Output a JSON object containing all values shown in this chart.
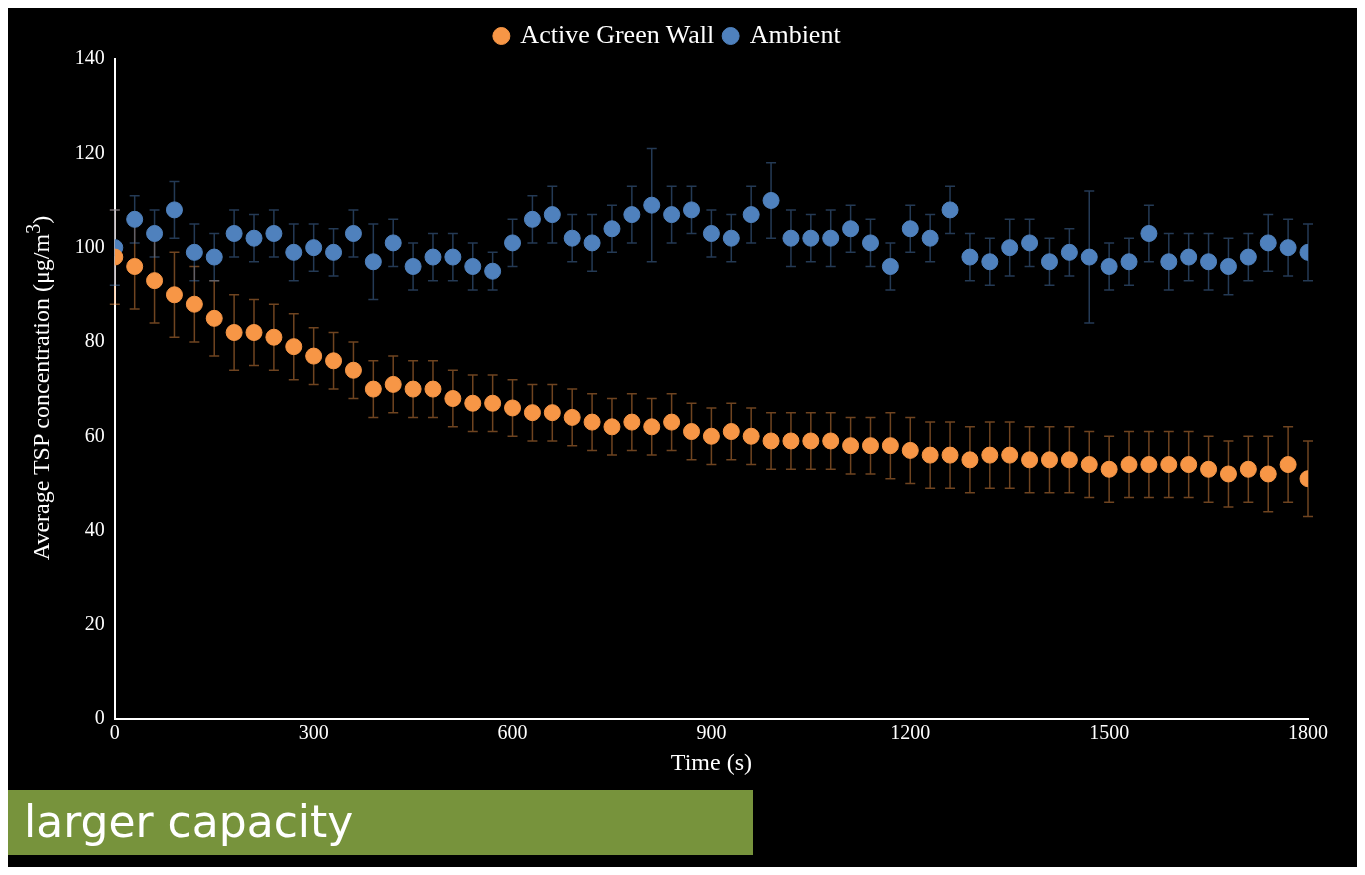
{
  "chart_data": {
    "type": "scatter",
    "xlabel": "Time (s)",
    "ylabel": "Average TSP concentration (μg/m$^{3}$)",
    "xlim": [
      0,
      1800
    ],
    "xticks": [
      0,
      300,
      600,
      900,
      1200,
      1500,
      1800
    ],
    "ylim": [
      0,
      140
    ],
    "yticks": [
      0,
      20,
      40,
      60,
      80,
      100,
      120,
      140
    ],
    "grid": false,
    "legend": "top",
    "marker": "circle",
    "x": [
      0,
      30,
      60,
      90,
      120,
      150,
      180,
      210,
      240,
      270,
      300,
      330,
      360,
      390,
      420,
      450,
      480,
      510,
      540,
      570,
      600,
      630,
      660,
      690,
      720,
      750,
      780,
      810,
      840,
      870,
      900,
      930,
      960,
      990,
      1020,
      1050,
      1080,
      1110,
      1140,
      1170,
      1200,
      1230,
      1260,
      1290,
      1320,
      1350,
      1380,
      1410,
      1440,
      1470,
      1500,
      1530,
      1560,
      1590,
      1620,
      1650,
      1680,
      1710,
      1740,
      1770,
      1800
    ],
    "series": [
      {
        "name": "Active Green Wall",
        "color": "#f79646",
        "values": [
          98,
          96,
          93,
          90,
          88,
          85,
          82,
          82,
          81,
          79,
          77,
          76,
          74,
          70,
          71,
          70,
          70,
          68,
          67,
          67,
          66,
          65,
          65,
          64,
          63,
          62,
          63,
          62,
          63,
          61,
          60,
          61,
          60,
          59,
          59,
          59,
          59,
          58,
          58,
          58,
          57,
          56,
          56,
          55,
          56,
          56,
          55,
          55,
          55,
          54,
          53,
          54,
          54,
          54,
          54,
          53,
          52,
          53,
          52,
          54,
          51
        ],
        "errors": [
          10,
          9,
          9,
          9,
          8,
          8,
          8,
          7,
          7,
          7,
          6,
          6,
          6,
          6,
          6,
          6,
          6,
          6,
          6,
          6,
          6,
          6,
          6,
          6,
          6,
          6,
          6,
          6,
          6,
          6,
          6,
          6,
          6,
          6,
          6,
          6,
          6,
          6,
          6,
          7,
          7,
          7,
          7,
          7,
          7,
          7,
          7,
          7,
          7,
          7,
          7,
          7,
          7,
          7,
          7,
          7,
          7,
          7,
          8,
          8,
          8
        ]
      },
      {
        "name": "Ambient",
        "color": "#4f81bd",
        "values": [
          100,
          106,
          103,
          108,
          99,
          98,
          103,
          102,
          103,
          99,
          100,
          99,
          103,
          97,
          101,
          96,
          98,
          98,
          96,
          95,
          101,
          106,
          107,
          102,
          101,
          104,
          107,
          109,
          107,
          108,
          103,
          102,
          107,
          110,
          102,
          102,
          102,
          104,
          101,
          96,
          104,
          102,
          108,
          98,
          97,
          100,
          101,
          97,
          99,
          98,
          96,
          97,
          103,
          97,
          98,
          97,
          96,
          98,
          101,
          100,
          99
        ],
        "errors": [
          8,
          5,
          5,
          6,
          6,
          5,
          5,
          5,
          5,
          6,
          5,
          5,
          5,
          8,
          5,
          5,
          5,
          5,
          5,
          4,
          5,
          5,
          6,
          5,
          6,
          5,
          6,
          12,
          6,
          5,
          5,
          5,
          6,
          8,
          6,
          5,
          6,
          5,
          5,
          5,
          5,
          5,
          5,
          5,
          5,
          6,
          5,
          5,
          5,
          14,
          5,
          5,
          6,
          6,
          5,
          6,
          6,
          5,
          6,
          6,
          6
        ]
      }
    ],
    "annotations": [
      "larger capacity"
    ]
  }
}
